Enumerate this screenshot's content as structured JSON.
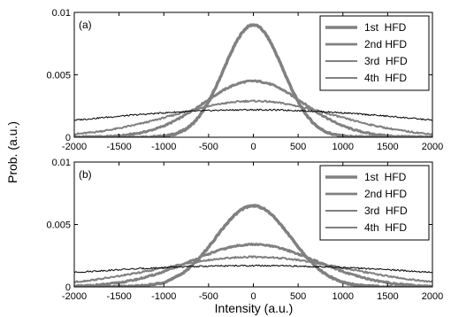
{
  "chart_data": [
    {
      "type": "line",
      "panel_label": "(a)",
      "xlim": [
        -2000,
        2000
      ],
      "ylim": [
        0,
        0.01
      ],
      "x_ticks": [
        -2000,
        -1500,
        -1000,
        -500,
        0,
        500,
        1000,
        1500,
        2000
      ],
      "y_ticks": [
        0,
        0.005,
        0.01
      ],
      "y_tick_labels": [
        "0",
        "0.005",
        "0.01"
      ],
      "legend_position": "top-right",
      "grid": false,
      "series": [
        {
          "name": "1st  HFD",
          "shape": "gaussian",
          "peak": 0.009,
          "sigma": 330,
          "color": "#808080",
          "width": 3.5
        },
        {
          "name": "2nd HFD",
          "shape": "gaussian",
          "peak": 0.0045,
          "sigma": 560,
          "color": "#808080",
          "width": 2.8
        },
        {
          "name": "3rd  HFD",
          "shape": "gaussian",
          "peak": 0.0029,
          "sigma": 900,
          "color": "#808080",
          "width": 2.0
        },
        {
          "name": "4th  HFD",
          "shape": "gaussian",
          "peak": 0.0022,
          "sigma": 2050,
          "color": "#000000",
          "width": 1.0
        }
      ]
    },
    {
      "type": "line",
      "panel_label": "(b)",
      "xlim": [
        -2000,
        2000
      ],
      "ylim": [
        0,
        0.01
      ],
      "x_ticks": [
        -2000,
        -1500,
        -1000,
        -500,
        0,
        500,
        1000,
        1500,
        2000
      ],
      "y_ticks": [
        0,
        0.005,
        0.01
      ],
      "y_tick_labels": [
        "0",
        "0.005",
        "0.01"
      ],
      "legend_position": "top-right",
      "grid": false,
      "series": [
        {
          "name": "1st  HFD",
          "shape": "gaussian",
          "peak": 0.0065,
          "sigma": 420,
          "color": "#808080",
          "width": 3.5
        },
        {
          "name": "2nd HFD",
          "shape": "gaussian",
          "peak": 0.0034,
          "sigma": 700,
          "color": "#808080",
          "width": 2.8
        },
        {
          "name": "3rd  HFD",
          "shape": "gaussian",
          "peak": 0.0024,
          "sigma": 1050,
          "color": "#808080",
          "width": 2.0
        },
        {
          "name": "4th  HFD",
          "shape": "gaussian",
          "peak": 0.0017,
          "sigma": 2300,
          "color": "#000000",
          "width": 1.0
        }
      ]
    }
  ],
  "labels": {
    "xlabel": "Intensity (a.u.)",
    "ylabel": "Prob. (a.u.)"
  }
}
